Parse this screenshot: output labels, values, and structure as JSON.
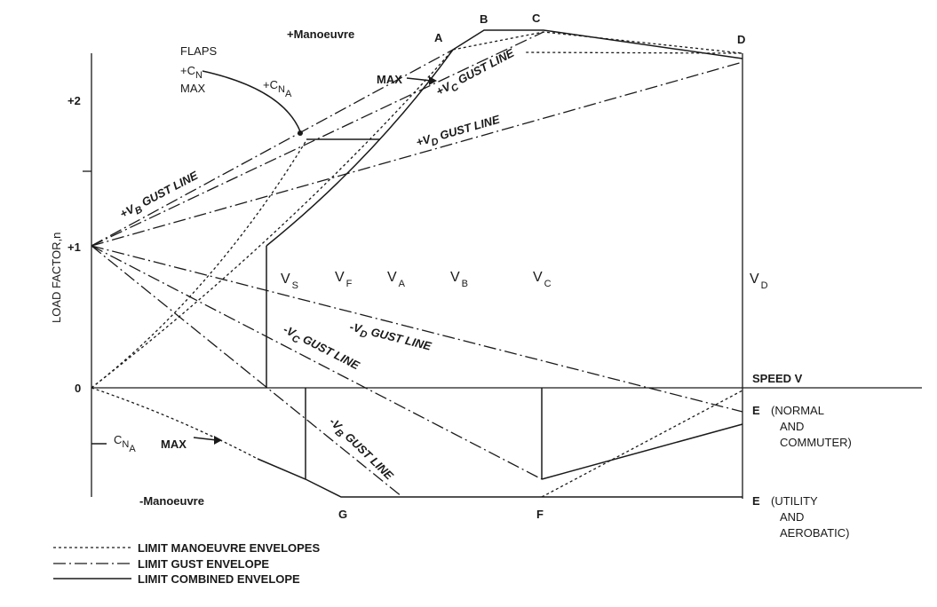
{
  "axes": {
    "y_label": "LOAD FACTOR,n",
    "x_label": "SPEED V",
    "y_ticks": [
      "+2",
      "+1",
      "0"
    ]
  },
  "regions": {
    "positive": "+Manoeuvre",
    "negative": "-Manoeuvre"
  },
  "points": {
    "A": "A",
    "B": "B",
    "C": "C",
    "D": "D",
    "E_normal": "E",
    "E_utility": "E",
    "F": "F",
    "G": "G"
  },
  "speeds": [
    {
      "main": "V",
      "sub": "S"
    },
    {
      "main": "V",
      "sub": "F"
    },
    {
      "main": "V",
      "sub": "A"
    },
    {
      "main": "V",
      "sub": "B"
    },
    {
      "main": "V",
      "sub": "C"
    },
    {
      "main": "V",
      "sub": "D"
    }
  ],
  "annotations": {
    "flaps_line1": "FLAPS",
    "flaps_line2_main": "+C",
    "flaps_line2_sub": "N",
    "flaps_line3": "MAX",
    "cna_pos_main": "+C",
    "cna_pos_sub": "N",
    "cna_pos_subsub": "A",
    "max_pos": "MAX",
    "cna_neg_main": "C",
    "cna_neg_sub": "N",
    "cna_neg_subsub": "A",
    "max_neg": "MAX",
    "e_normal_line1": "(NORMAL",
    "e_normal_line2": "AND",
    "e_normal_line3": "COMMUTER)",
    "e_utility_line1": "(UTILITY",
    "e_utility_line2": "AND",
    "e_utility_line3": "AEROBATIC)"
  },
  "gust_lines": {
    "vb_pos": {
      "pre": "+V",
      "sub": "B",
      "post": " GUST LINE"
    },
    "vc_pos": {
      "pre": "+V",
      "sub": "C",
      "post": " GUST LINE"
    },
    "vd_pos": {
      "pre": "+V",
      "sub": "D",
      "post": " GUST LINE"
    },
    "vc_neg": {
      "pre": "-V",
      "sub": "C",
      "post": " GUST LINE"
    },
    "vd_neg": {
      "pre": "-V",
      "sub": "D",
      "post": " GUST LINE"
    },
    "vb_neg": {
      "pre": "-V",
      "sub": "B",
      "post": " GUST LINE"
    }
  },
  "legend": [
    {
      "style": "manoeuvre",
      "label": "LIMIT MANOEUVRE ENVELOPES"
    },
    {
      "style": "gust",
      "label": "LIMIT GUST ENVELOPE"
    },
    {
      "style": "combined",
      "label": "LIMIT COMBINED ENVELOPE"
    }
  ]
}
